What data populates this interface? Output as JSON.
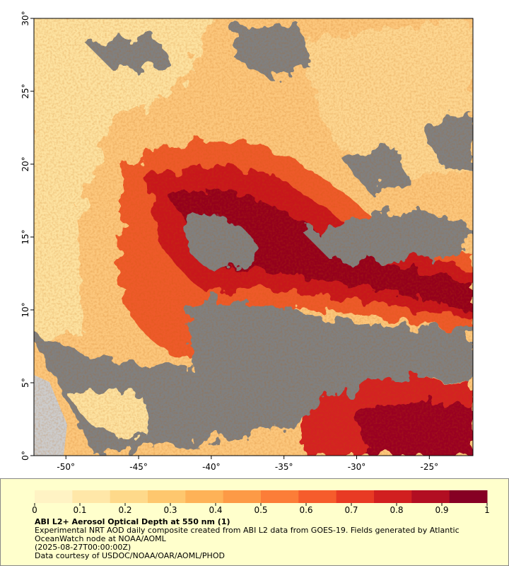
{
  "map": {
    "xlim": [
      -52.2,
      -22.0
    ],
    "ylim": [
      0,
      30
    ],
    "yticks": [
      {
        "value": 0,
        "label": "0°"
      },
      {
        "value": 5,
        "label": "5°"
      },
      {
        "value": 10,
        "label": "10°"
      },
      {
        "value": 15,
        "label": "15°"
      },
      {
        "value": 20,
        "label": "20°"
      },
      {
        "value": 25,
        "label": "25°"
      },
      {
        "value": 30,
        "label": "30°"
      }
    ],
    "xticks": [
      {
        "value": -50,
        "label": "-50°"
      },
      {
        "value": -45,
        "label": "-45°"
      },
      {
        "value": -40,
        "label": "-40°"
      },
      {
        "value": -35,
        "label": "-35°"
      },
      {
        "value": -30,
        "label": "-30°"
      },
      {
        "value": -25,
        "label": "-25°"
      }
    ]
  },
  "colorbar": {
    "range": [
      0,
      1
    ],
    "ticks": [
      0,
      0.1,
      0.2,
      0.3,
      0.4,
      0.5,
      0.6,
      0.7,
      0.8,
      0.9,
      1
    ],
    "colors": [
      "#fff3c4",
      "#ffe7a8",
      "#fed98a",
      "#fec76e",
      "#feb257",
      "#fd9a46",
      "#fc7d38",
      "#f65c2c",
      "#e83a24",
      "#d11f20",
      "#b20e22",
      "#860024"
    ]
  },
  "legend": {
    "title": "ABI L2+ Aerosol Optical Depth at 550 nm (1)",
    "description": "Experimental NRT AOD daily composite created from ABI L2 data from GOES-19. Fields generated by Atlantic OceanWatch node at NOAA/AOML",
    "time": "(2025-08-27T00:00:00Z)",
    "credit": "Data courtesy of USDOC/NOAA/OAR/AOML/PHOD"
  }
}
